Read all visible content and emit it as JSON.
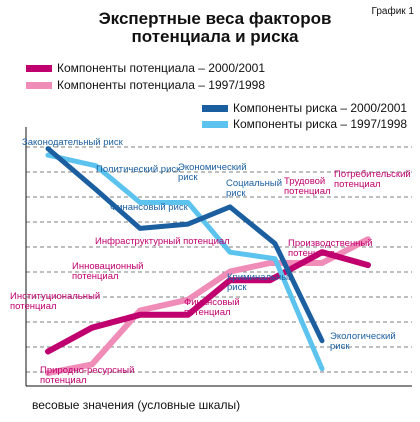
{
  "header": {
    "ref_label": "График 1",
    "title_line1": "Экспертные веса факторов",
    "title_line2": "потенциала и риска"
  },
  "colors": {
    "potential_2000": "#c0006e",
    "potential_1997": "#f08cb8",
    "risk_2000": "#1b5fa0",
    "risk_1997": "#5cc3ee"
  },
  "chart_data": {
    "type": "line",
    "title": "Экспертные веса факторов потенциала и риска",
    "xlabel": "",
    "ylabel": "весовые значения (условные шкалы)",
    "grid": "horizontal dashed",
    "legend_placement": "top",
    "series": [
      {
        "name": "Компоненты потенциала – 2000/2001",
        "color": "#c0006e",
        "points": [
          {
            "label": "Природно-ресурсный потенциал",
            "y": 1.6
          },
          {
            "label": "Институциональный потенциал",
            "y": 2.7
          },
          {
            "label": "Инновационный потенциал",
            "y": 3.3
          },
          {
            "label": "Финансовый потенциал",
            "y": 3.3
          },
          {
            "label": "Инфраструктурный потенциал",
            "y": 4.9
          },
          {
            "label": "Производственный потенциал",
            "y": 4.9
          },
          {
            "label": "Трудовой потенциал",
            "y": 6.2
          },
          {
            "label": "Потребительский потенциал",
            "y": 5.6
          }
        ]
      },
      {
        "name": "Компоненты потенциала – 1997/1998",
        "color": "#f08cb8",
        "points": [
          {
            "label": "Природно-ресурсный потенциал",
            "y": 0.6
          },
          {
            "label": "Институциональный потенциал",
            "y": 1.0
          },
          {
            "label": "Инновационный потенциал",
            "y": 3.5
          },
          {
            "label": "Финансовый потенциал",
            "y": 4.0
          },
          {
            "label": "Инфраструктурный потенциал",
            "y": 5.3
          },
          {
            "label": "Производственный потенциал",
            "y": 5.7
          },
          {
            "label": "Трудовой потенциал",
            "y": 5.7
          },
          {
            "label": "Потребительский потенциал",
            "y": 6.8
          }
        ]
      },
      {
        "name": "Компоненты риска – 2000/2001",
        "color": "#1b5fa0",
        "points": [
          {
            "label": "Законодательный риск",
            "y": 11.0
          },
          {
            "label": "Политический риск",
            "y": 9.1
          },
          {
            "label": "Финансовый риск",
            "y": 7.3
          },
          {
            "label": "Экономический риск",
            "y": 7.5
          },
          {
            "label": "Социальный риск",
            "y": 8.3
          },
          {
            "label": "Криминальный риск",
            "y": 6.6
          },
          {
            "label": "Экологический риск",
            "y": 2.1
          }
        ]
      },
      {
        "name": "Компоненты риска – 1997/1998",
        "color": "#5cc3ee",
        "points": [
          {
            "label": "Законодательный риск",
            "y": 10.7
          },
          {
            "label": "Политический риск",
            "y": 10.2
          },
          {
            "label": "Финансовый риск",
            "y": 8.5
          },
          {
            "label": "Экономический риск",
            "y": 8.5
          },
          {
            "label": "Социальный риск",
            "y": 6.2
          },
          {
            "label": "Криминальный риск",
            "y": 5.9
          },
          {
            "label": "Экологический риск",
            "y": 0.8
          }
        ]
      }
    ],
    "annotations": [
      {
        "text": "Законодательный риск",
        "color": "#1b5fa0"
      },
      {
        "text": "Политический риск",
        "color": "#1b5fa0"
      },
      {
        "text": "Финансовый риск",
        "color": "#1b5fa0"
      },
      {
        "text": "Экономический риск",
        "color": "#1b5fa0"
      },
      {
        "text": "Социальный риск",
        "color": "#1b5fa0"
      },
      {
        "text": "Криминальный риск",
        "color": "#1b5fa0"
      },
      {
        "text": "Экологический риск",
        "color": "#1b5fa0"
      },
      {
        "text": "Инфраструктурный потенциал",
        "color": "#c0006e"
      },
      {
        "text": "Инновационный потенциал",
        "color": "#c0006e"
      },
      {
        "text": "Институциональный потенциал",
        "color": "#c0006e"
      },
      {
        "text": "Природно-ресурсный потенциал",
        "color": "#c0006e"
      },
      {
        "text": "Финансовый потенциал",
        "color": "#c0006e"
      },
      {
        "text": "Производственный потенциал",
        "color": "#c0006e"
      },
      {
        "text": "Трудовой потенциал",
        "color": "#c0006e"
      },
      {
        "text": "Потребительский потенциал",
        "color": "#c0006e"
      }
    ]
  }
}
